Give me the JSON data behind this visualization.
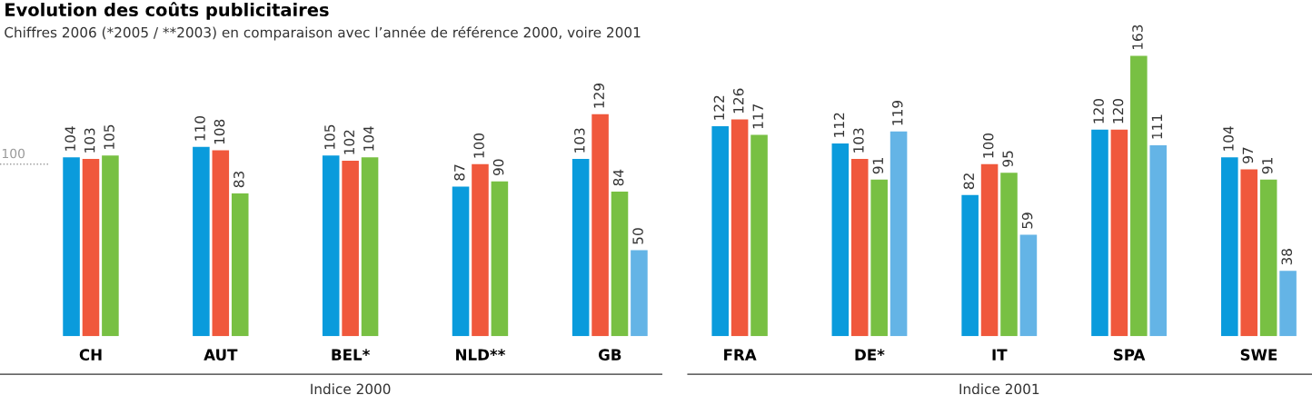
{
  "chart_data": {
    "type": "bar",
    "title": "Evolution des coûts publicitaires",
    "subtitle": "Chiffres 2006 (*2005 / **2003) en comparaison avec l’année de référence 2000, voire 2001",
    "categories": [
      "CH",
      "AUT",
      "BEL*",
      "NLD**",
      "GB",
      "FRA",
      "DE*",
      "IT",
      "SPA",
      "SWE"
    ],
    "series": [
      {
        "color": "#0a9bdc",
        "values": [
          104,
          110,
          105,
          87,
          103,
          122,
          112,
          82,
          120,
          104
        ]
      },
      {
        "color": "#f0583c",
        "values": [
          103,
          108,
          102,
          100,
          129,
          126,
          103,
          100,
          120,
          97
        ]
      },
      {
        "color": "#78c043",
        "values": [
          105,
          83,
          104,
          90,
          84,
          117,
          91,
          95,
          163,
          91
        ]
      },
      {
        "color": "#64b4e6",
        "values": [
          null,
          null,
          null,
          null,
          50,
          null,
          119,
          59,
          111,
          38
        ]
      }
    ],
    "ref_lines": [
      {
        "axis": "y",
        "value": 100,
        "label": "100",
        "line_style": "dotted",
        "color": "#999999"
      }
    ],
    "data_labels": true,
    "grid": false,
    "legend": false,
    "annotations": [
      "Indice 2000",
      "Indice 2001"
    ]
  }
}
